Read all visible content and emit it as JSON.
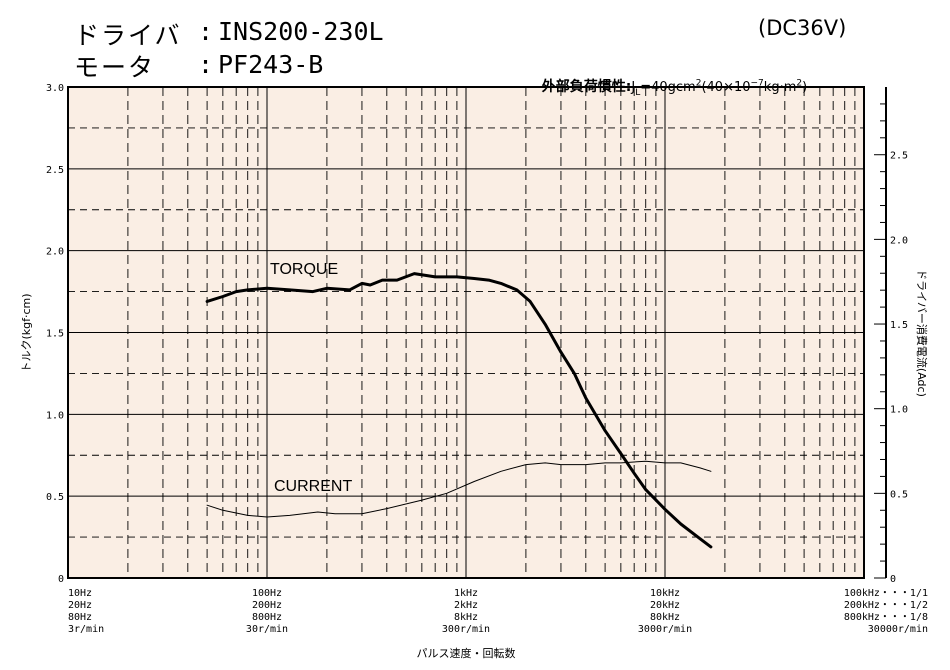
{
  "header": {
    "driver_label": "ドライバ",
    "driver_value": "INS200-230L",
    "motor_label": "モータ",
    "motor_value": "PF243-B",
    "sep": ":",
    "voltage": "(DC36V)",
    "inertia_prefix": "外部負荷慣性:",
    "inertia_j": "J",
    "inertia_sub": "L",
    "inertia_eq": "=40gcm",
    "inertia_exp": "2",
    "inertia_paren_open": "(40×10",
    "inertia_exp2": "−7",
    "inertia_unit": "kg·m",
    "inertia_exp3": "2",
    "inertia_paren_close": ")"
  },
  "chart_data": {
    "type": "line",
    "x_scale": "log",
    "xlim": [
      10,
      100000
    ],
    "ylim": [
      0,
      3.0
    ],
    "ylabel": "トルク(kgf·cm)",
    "y2label": "ドライバー消費電流(Adc)",
    "xlabel": "パルス速度・回転数",
    "grid": true,
    "y_ticks": [
      "0",
      "0.5",
      "1.0",
      "1.5",
      "2.0",
      "2.5",
      "3.0"
    ],
    "y2_ticks": [
      "0",
      "0.5",
      "1.0",
      "1.5",
      "2.0",
      "2.5"
    ],
    "y2lim": [
      0,
      2.9
    ],
    "x_tick_labels": [
      {
        "x": 10,
        "lines": [
          "10Hz",
          "20Hz",
          "80Hz",
          "3r/min"
        ]
      },
      {
        "x": 100,
        "lines": [
          "100Hz",
          "200Hz",
          "800Hz",
          "30r/min"
        ]
      },
      {
        "x": 1000,
        "lines": [
          "1kHz",
          "2kHz",
          "8kHz",
          "300r/min"
        ]
      },
      {
        "x": 10000,
        "lines": [
          "10kHz",
          "20kHz",
          "80kHz",
          "3000r/min"
        ]
      },
      {
        "x": 100000,
        "lines": [
          "100kHz・・・1/1",
          "200kHz・・・1/2",
          "800kHz・・・1/8",
          "30000r/min"
        ]
      }
    ],
    "series": [
      {
        "name": "TORQUE",
        "axis": "left",
        "points": [
          [
            50,
            1.69
          ],
          [
            60,
            1.72
          ],
          [
            70,
            1.75
          ],
          [
            80,
            1.76
          ],
          [
            100,
            1.77
          ],
          [
            130,
            1.76
          ],
          [
            170,
            1.75
          ],
          [
            200,
            1.77
          ],
          [
            260,
            1.76
          ],
          [
            300,
            1.8
          ],
          [
            330,
            1.79
          ],
          [
            380,
            1.82
          ],
          [
            450,
            1.82
          ],
          [
            550,
            1.86
          ],
          [
            700,
            1.84
          ],
          [
            900,
            1.84
          ],
          [
            1100,
            1.83
          ],
          [
            1300,
            1.82
          ],
          [
            1500,
            1.8
          ],
          [
            1800,
            1.76
          ],
          [
            2100,
            1.69
          ],
          [
            2500,
            1.55
          ],
          [
            3000,
            1.38
          ],
          [
            3500,
            1.25
          ],
          [
            4000,
            1.1
          ],
          [
            5000,
            0.9
          ],
          [
            6000,
            0.76
          ],
          [
            7000,
            0.64
          ],
          [
            8000,
            0.54
          ],
          [
            10000,
            0.42
          ],
          [
            12000,
            0.33
          ],
          [
            15000,
            0.24
          ],
          [
            17000,
            0.19
          ]
        ]
      },
      {
        "name": "CURRENT",
        "axis": "right",
        "points": [
          [
            50,
            0.43
          ],
          [
            60,
            0.4
          ],
          [
            80,
            0.37
          ],
          [
            100,
            0.36
          ],
          [
            130,
            0.37
          ],
          [
            180,
            0.39
          ],
          [
            220,
            0.38
          ],
          [
            300,
            0.38
          ],
          [
            400,
            0.41
          ],
          [
            600,
            0.46
          ],
          [
            800,
            0.5
          ],
          [
            1100,
            0.57
          ],
          [
            1500,
            0.63
          ],
          [
            2000,
            0.67
          ],
          [
            2500,
            0.68
          ],
          [
            3000,
            0.67
          ],
          [
            4000,
            0.67
          ],
          [
            5000,
            0.68
          ],
          [
            6000,
            0.68
          ],
          [
            8000,
            0.69
          ],
          [
            10000,
            0.68
          ],
          [
            12000,
            0.68
          ],
          [
            15000,
            0.65
          ],
          [
            17000,
            0.63
          ]
        ]
      }
    ]
  }
}
